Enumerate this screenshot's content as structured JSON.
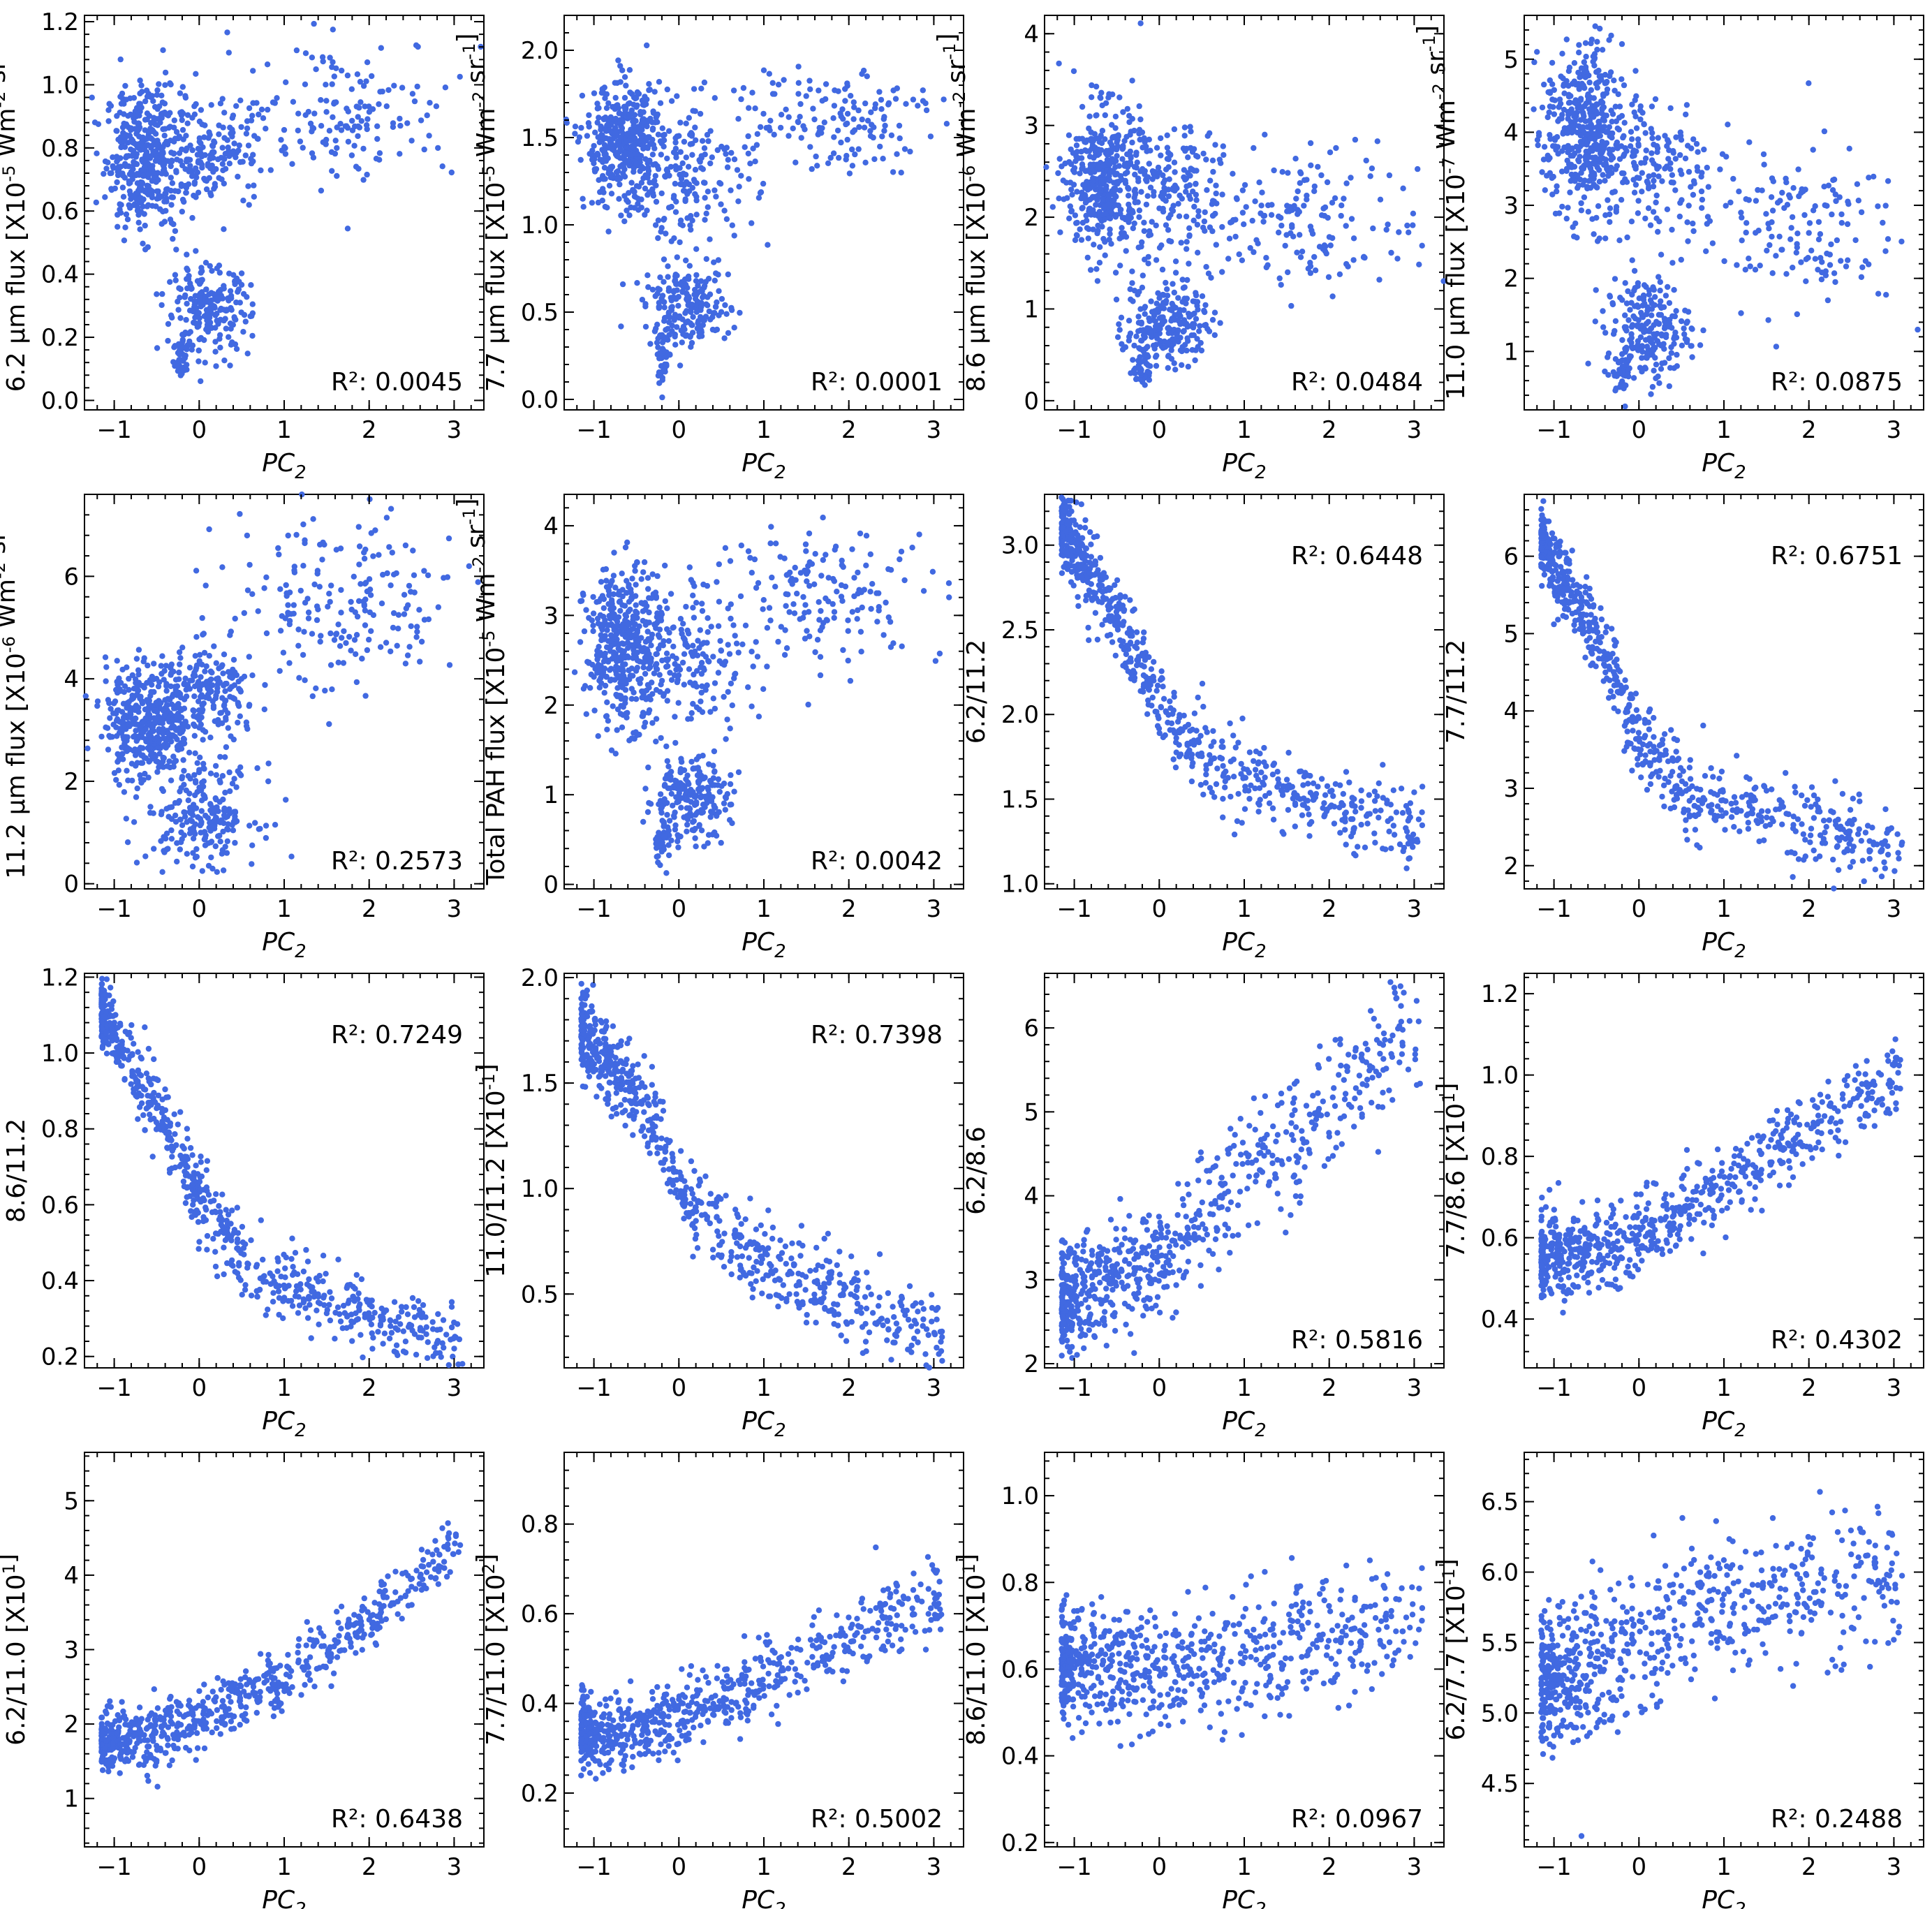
{
  "figure": {
    "title": "",
    "point_color": "#4169e1",
    "axis_color": "#000000",
    "background_color": "#ffffff"
  },
  "chart_data": [
    {
      "type": "scatter",
      "panel": "6.2 flux vs PC2",
      "xlabel": "PC2",
      "ylabel": "6.2 μm flux [X10^-5 Wm^-2 sr^-1]",
      "xlim": [
        -1.35,
        3.35
      ],
      "ylim": [
        -0.03,
        1.22
      ],
      "xticks": [
        -1,
        0,
        1,
        2,
        3
      ],
      "yticks": [
        0.0,
        0.2,
        0.4,
        0.6,
        0.8,
        1.0,
        1.2
      ],
      "ytick_labels": [
        "0.0",
        "0.2",
        "0.4",
        "0.6",
        "0.8",
        "1.0",
        "1.2"
      ],
      "r2_label": "R²: 0.0045",
      "r2_position": "bottom-right",
      "clusters": [
        {
          "x": [
            -1.1,
            -0.2
          ],
          "y": [
            0.55,
            1.0
          ],
          "n": 420
        },
        {
          "x": [
            -0.6,
            0.8
          ],
          "y": [
            0.6,
            0.95
          ],
          "n": 180
        },
        {
          "x": [
            -0.4,
            0.6
          ],
          "y": [
            0.15,
            0.42
          ],
          "n": 220
        },
        {
          "x": [
            -0.3,
            -0.1
          ],
          "y": [
            0.04,
            0.22
          ],
          "n": 40
        },
        {
          "x": [
            0.4,
            3.0
          ],
          "y": [
            0.7,
            1.15
          ],
          "n": 160
        }
      ]
    },
    {
      "type": "scatter",
      "panel": "7.7 flux vs PC2",
      "xlabel": "PC2",
      "ylabel": "7.7 μm flux [X10^-5 Wm^-2 sr^-1]",
      "xlim": [
        -1.35,
        3.35
      ],
      "ylim": [
        -0.06,
        2.2
      ],
      "xticks": [
        -1,
        0,
        1,
        2,
        3
      ],
      "yticks": [
        0.0,
        0.5,
        1.0,
        1.5,
        2.0
      ],
      "ytick_labels": [
        "0.0",
        "0.5",
        "1.0",
        "1.5",
        "2.0"
      ],
      "r2_label": "R²: 0.0001",
      "r2_position": "bottom-right",
      "clusters": [
        {
          "x": [
            -1.1,
            -0.2
          ],
          "y": [
            1.1,
            1.8
          ],
          "n": 420
        },
        {
          "x": [
            -0.6,
            0.9
          ],
          "y": [
            0.9,
            1.7
          ],
          "n": 180
        },
        {
          "x": [
            -0.4,
            0.6
          ],
          "y": [
            0.3,
            0.75
          ],
          "n": 220
        },
        {
          "x": [
            -0.3,
            -0.1
          ],
          "y": [
            0.08,
            0.4
          ],
          "n": 40
        },
        {
          "x": [
            0.4,
            3.1
          ],
          "y": [
            1.3,
            1.95
          ],
          "n": 160
        }
      ]
    },
    {
      "type": "scatter",
      "panel": "8.6 flux vs PC2",
      "xlabel": "PC2",
      "ylabel": "8.6 μm flux [X10^-6 Wm^-2 sr^-1]",
      "xlim": [
        -1.35,
        3.35
      ],
      "ylim": [
        -0.1,
        4.2
      ],
      "xticks": [
        -1,
        0,
        1,
        2,
        3
      ],
      "yticks": [
        0,
        1,
        2,
        3,
        4
      ],
      "ytick_labels": [
        "0",
        "1",
        "2",
        "3",
        "4"
      ],
      "r2_label": "R²: 0.0484",
      "r2_position": "bottom-right",
      "clusters": [
        {
          "x": [
            -1.1,
            -0.2
          ],
          "y": [
            1.6,
            3.2
          ],
          "n": 420
        },
        {
          "x": [
            -0.6,
            0.9
          ],
          "y": [
            1.5,
            3.0
          ],
          "n": 180
        },
        {
          "x": [
            -0.4,
            0.6
          ],
          "y": [
            0.4,
            1.3
          ],
          "n": 220
        },
        {
          "x": [
            -0.3,
            -0.1
          ],
          "y": [
            0.15,
            0.6
          ],
          "n": 40
        },
        {
          "x": [
            0.4,
            3.1
          ],
          "y": [
            1.2,
            2.8
          ],
          "n": 160
        }
      ]
    },
    {
      "type": "scatter",
      "panel": "11.0 flux vs PC2",
      "xlabel": "PC2",
      "ylabel": "11.0 μm flux [X10^-7 Wm^-2 sr^-1]",
      "xlim": [
        -1.35,
        3.35
      ],
      "ylim": [
        0.2,
        5.6
      ],
      "xticks": [
        -1,
        0,
        1,
        2,
        3
      ],
      "yticks": [
        1,
        2,
        3,
        4,
        5
      ],
      "ytick_labels": [
        "1",
        "2",
        "3",
        "4",
        "5"
      ],
      "r2_label": "R²: 0.0875",
      "r2_position": "bottom-right",
      "clusters": [
        {
          "x": [
            -1.1,
            -0.2
          ],
          "y": [
            2.8,
            5.2
          ],
          "n": 420
        },
        {
          "x": [
            -0.6,
            0.9
          ],
          "y": [
            2.6,
            4.6
          ],
          "n": 180
        },
        {
          "x": [
            -0.4,
            0.6
          ],
          "y": [
            0.6,
            2.0
          ],
          "n": 220
        },
        {
          "x": [
            -0.3,
            -0.1
          ],
          "y": [
            0.4,
            1.0
          ],
          "n": 40
        },
        {
          "x": [
            0.4,
            3.1
          ],
          "y": [
            1.6,
            3.8
          ],
          "n": 160
        }
      ]
    },
    {
      "type": "scatter",
      "panel": "11.2 flux vs PC2",
      "xlabel": "PC2",
      "ylabel": "11.2 μm flux [X10^-6 Wm^-2 sr^-1]",
      "xlim": [
        -1.35,
        3.35
      ],
      "ylim": [
        -0.1,
        7.6
      ],
      "xticks": [
        -1,
        0,
        1,
        2,
        3
      ],
      "yticks": [
        0,
        2,
        4,
        6
      ],
      "ytick_labels": [
        "0",
        "2",
        "4",
        "6"
      ],
      "r2_label": "R²: 0.2573",
      "r2_position": "bottom-right",
      "clusters": [
        {
          "x": [
            -1.1,
            -0.1
          ],
          "y": [
            2.0,
            4.3
          ],
          "n": 420
        },
        {
          "x": [
            -0.4,
            0.7
          ],
          "y": [
            2.8,
            4.6
          ],
          "n": 180
        },
        {
          "x": [
            -0.6,
            0.7
          ],
          "y": [
            0.4,
            2.3
          ],
          "n": 220
        },
        {
          "x": [
            0.3,
            3.1
          ],
          "y": [
            3.5,
            7.3
          ],
          "n": 200
        }
      ]
    },
    {
      "type": "scatter",
      "panel": "Total PAH flux vs PC2",
      "xlabel": "PC2",
      "ylabel": "Total PAH flux [X10^-5 Wm^-2 sr^-1]",
      "xlim": [
        -1.35,
        3.35
      ],
      "ylim": [
        -0.05,
        4.35
      ],
      "xticks": [
        -1,
        0,
        1,
        2,
        3
      ],
      "yticks": [
        0,
        1,
        2,
        3,
        4
      ],
      "ytick_labels": [
        "0",
        "1",
        "2",
        "3",
        "4"
      ],
      "r2_label": "R²: 0.0042",
      "r2_position": "bottom-right",
      "clusters": [
        {
          "x": [
            -1.1,
            -0.2
          ],
          "y": [
            1.8,
            3.5
          ],
          "n": 420
        },
        {
          "x": [
            -0.6,
            0.9
          ],
          "y": [
            1.7,
            3.4
          ],
          "n": 180
        },
        {
          "x": [
            -0.4,
            0.6
          ],
          "y": [
            0.5,
            1.4
          ],
          "n": 220
        },
        {
          "x": [
            -0.3,
            -0.1
          ],
          "y": [
            0.2,
            0.7
          ],
          "n": 40
        },
        {
          "x": [
            0.4,
            3.1
          ],
          "y": [
            2.5,
            4.0
          ],
          "n": 160
        }
      ]
    },
    {
      "type": "scatter",
      "panel": "6.2/11.2 vs PC2",
      "xlabel": "PC2",
      "ylabel": "6.2/11.2",
      "xlim": [
        -1.35,
        3.35
      ],
      "ylim": [
        0.97,
        3.3
      ],
      "xticks": [
        -1,
        0,
        1,
        2,
        3
      ],
      "yticks": [
        1.0,
        1.5,
        2.0,
        2.5,
        3.0
      ],
      "ytick_labels": [
        "1.0",
        "1.5",
        "2.0",
        "2.5",
        "3.0"
      ],
      "r2_label": "R²: 0.6448",
      "r2_position": "top-right",
      "trend": {
        "x": [
          -1.15,
          -0.4,
          0.0,
          0.6,
          1.5,
          3.1
        ],
        "y": [
          3.1,
          2.5,
          2.05,
          1.7,
          1.55,
          1.32
        ],
        "spread": 0.12,
        "n": 700
      }
    },
    {
      "type": "scatter",
      "panel": "7.7/11.2 vs PC2",
      "xlabel": "PC2",
      "ylabel": "7.7/11.2",
      "xlim": [
        -1.35,
        3.35
      ],
      "ylim": [
        1.7,
        6.8
      ],
      "xticks": [
        -1,
        0,
        1,
        2,
        3
      ],
      "yticks": [
        2,
        3,
        4,
        5,
        6
      ],
      "ytick_labels": [
        "2",
        "3",
        "4",
        "5",
        "6"
      ],
      "r2_label": "R²: 0.6751",
      "r2_position": "top-right",
      "trend": {
        "x": [
          -1.15,
          -0.4,
          0.0,
          0.6,
          1.5,
          3.1
        ],
        "y": [
          6.2,
          4.7,
          3.6,
          2.9,
          2.7,
          2.25
        ],
        "spread": 0.25,
        "n": 700
      }
    },
    {
      "type": "scatter",
      "panel": "8.6/11.2 vs PC2",
      "xlabel": "PC2",
      "ylabel": "8.6/11.2",
      "xlim": [
        -1.35,
        3.35
      ],
      "ylim": [
        0.17,
        1.21
      ],
      "xticks": [
        -1,
        0,
        1,
        2,
        3
      ],
      "yticks": [
        0.2,
        0.4,
        0.6,
        0.8,
        1.0,
        1.2
      ],
      "ytick_labels": [
        "0.2",
        "0.4",
        "0.6",
        "0.8",
        "1.0",
        "1.2"
      ],
      "r2_label": "R²: 0.7249",
      "r2_position": "top-right",
      "trend": {
        "x": [
          -1.15,
          -0.4,
          0.0,
          0.6,
          1.5,
          3.1
        ],
        "y": [
          1.12,
          0.8,
          0.62,
          0.42,
          0.35,
          0.22
        ],
        "spread": 0.05,
        "n": 700
      }
    },
    {
      "type": "scatter",
      "panel": "11.0/11.2 vs PC2",
      "xlabel": "PC2",
      "ylabel": "11.0/11.2 [X10^-1]",
      "xlim": [
        -1.35,
        3.35
      ],
      "ylim": [
        0.15,
        2.02
      ],
      "xticks": [
        -1,
        0,
        1,
        2,
        3
      ],
      "yticks": [
        0.5,
        1.0,
        1.5,
        2.0
      ],
      "ytick_labels": [
        "0.5",
        "1.0",
        "1.5",
        "2.0"
      ],
      "r2_label": "R²: 0.7398",
      "r2_position": "top-right",
      "trend": {
        "x": [
          -1.15,
          -0.4,
          0.0,
          0.6,
          1.5,
          3.1
        ],
        "y": [
          1.75,
          1.4,
          1.0,
          0.75,
          0.55,
          0.3
        ],
        "spread": 0.1,
        "n": 700
      }
    },
    {
      "type": "scatter",
      "panel": "6.2/8.6 vs PC2",
      "xlabel": "PC2",
      "ylabel": "6.2/8.6",
      "xlim": [
        -1.35,
        3.35
      ],
      "ylim": [
        1.95,
        6.65
      ],
      "xticks": [
        -1,
        0,
        1,
        2,
        3
      ],
      "yticks": [
        2,
        3,
        4,
        5,
        6
      ],
      "ytick_labels": [
        "2",
        "3",
        "4",
        "5",
        "6"
      ],
      "r2_label": "R²: 0.5816",
      "r2_position": "bottom-right",
      "trend": {
        "x": [
          -1.15,
          -0.4,
          0.0,
          0.6,
          1.5,
          3.1
        ],
        "y": [
          2.8,
          3.0,
          3.2,
          3.9,
          4.6,
          6.0
        ],
        "spread": 0.35,
        "n": 700
      }
    },
    {
      "type": "scatter",
      "panel": "7.7/8.6 vs PC2",
      "xlabel": "PC2",
      "ylabel": "7.7/8.6 [X10^1]",
      "xlim": [
        -1.35,
        3.35
      ],
      "ylim": [
        0.28,
        1.25
      ],
      "xticks": [
        -1,
        0,
        1,
        2,
        3
      ],
      "yticks": [
        0.4,
        0.6,
        0.8,
        1.0,
        1.2
      ],
      "ytick_labels": [
        "0.4",
        "0.6",
        "0.8",
        "1.0",
        "1.2"
      ],
      "r2_label": "R²: 0.4302",
      "r2_position": "bottom-right",
      "trend": {
        "x": [
          -1.15,
          -0.4,
          0.0,
          0.6,
          1.5,
          3.1
        ],
        "y": [
          0.55,
          0.57,
          0.6,
          0.68,
          0.8,
          1.0
        ],
        "spread": 0.05,
        "n": 700
      }
    },
    {
      "type": "scatter",
      "panel": "6.2/11.0 vs PC2",
      "xlabel": "PC2",
      "ylabel": "6.2/11.0 [X10^1]",
      "xlim": [
        -1.35,
        3.35
      ],
      "ylim": [
        0.35,
        5.65
      ],
      "xticks": [
        -1,
        0,
        1,
        2,
        3
      ],
      "yticks": [
        1,
        2,
        3,
        4,
        5
      ],
      "ytick_labels": [
        "1",
        "2",
        "3",
        "4",
        "5"
      ],
      "r2_label": "R²: 0.6438",
      "r2_position": "bottom-right",
      "trend": {
        "x": [
          -1.15,
          -0.4,
          0.0,
          0.6,
          1.5,
          3.1
        ],
        "y": [
          1.75,
          1.85,
          2.0,
          2.4,
          3.0,
          4.5
        ],
        "spread": 0.2,
        "n": 700
      }
    },
    {
      "type": "scatter",
      "panel": "7.7/11.0 vs PC2",
      "xlabel": "PC2",
      "ylabel": "7.7/11.0 [X10^2]",
      "xlim": [
        -1.35,
        3.35
      ],
      "ylim": [
        0.08,
        0.96
      ],
      "xticks": [
        -1,
        0,
        1,
        2,
        3
      ],
      "yticks": [
        0.2,
        0.4,
        0.6,
        0.8
      ],
      "ytick_labels": [
        "0.2",
        "0.4",
        "0.6",
        "0.8"
      ],
      "r2_label": "R²: 0.5002",
      "r2_position": "bottom-right",
      "trend": {
        "x": [
          -1.15,
          -0.4,
          0.0,
          0.6,
          1.5,
          3.1
        ],
        "y": [
          0.33,
          0.34,
          0.37,
          0.42,
          0.5,
          0.65
        ],
        "spread": 0.04,
        "n": 700
      }
    },
    {
      "type": "scatter",
      "panel": "8.6/11.0 vs PC2",
      "xlabel": "PC2",
      "ylabel": "8.6/11.0 [X10^1]",
      "xlim": [
        -1.35,
        3.35
      ],
      "ylim": [
        0.19,
        1.1
      ],
      "xticks": [
        -1,
        0,
        1,
        2,
        3
      ],
      "yticks": [
        0.2,
        0.4,
        0.6,
        0.8,
        1.0
      ],
      "ytick_labels": [
        "0.2",
        "0.4",
        "0.6",
        "0.8",
        "1.0"
      ],
      "r2_label": "R²: 0.0967",
      "r2_position": "bottom-right",
      "trend": {
        "x": [
          -1.15,
          -0.4,
          0.0,
          0.6,
          1.5,
          3.1
        ],
        "y": [
          0.62,
          0.6,
          0.6,
          0.63,
          0.65,
          0.7
        ],
        "spread": 0.07,
        "n": 700
      }
    },
    {
      "type": "scatter",
      "panel": "6.2/7.7 vs PC2",
      "xlabel": "PC2",
      "ylabel": "6.2/7.7 [X10^-1]",
      "xlim": [
        -1.35,
        3.35
      ],
      "ylim": [
        4.05,
        6.85
      ],
      "xticks": [
        -1,
        0,
        1,
        2,
        3
      ],
      "yticks": [
        4.5,
        5.0,
        5.5,
        6.0,
        6.5
      ],
      "ytick_labels": [
        "4.5",
        "5.0",
        "5.5",
        "6.0",
        "6.5"
      ],
      "r2_label": "R²: 0.2488",
      "r2_position": "bottom-right",
      "trend": {
        "x": [
          -1.15,
          -0.4,
          0.0,
          0.6,
          1.5,
          3.1
        ],
        "y": [
          5.2,
          5.4,
          5.5,
          5.75,
          5.8,
          5.95
        ],
        "spread": 0.25,
        "n": 700
      }
    }
  ]
}
